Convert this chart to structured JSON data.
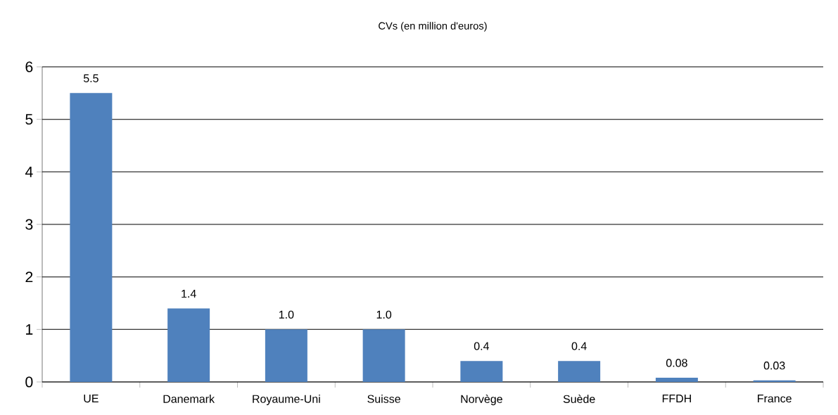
{
  "chart_data": {
    "type": "bar",
    "title": "CVs (en million d'euros)",
    "categories": [
      "UE",
      "Danemark",
      "Royaume-Uni",
      "Suisse",
      "Norvège",
      "Suède",
      "FFDH",
      "France"
    ],
    "values": [
      5.5,
      1.4,
      1.0,
      1.0,
      0.4,
      0.4,
      0.08,
      0.03
    ],
    "value_labels": [
      "5.5",
      "1.4",
      "1.0",
      "1.0",
      "0.4",
      "0.4",
      "0.08",
      "0.03"
    ],
    "color": "#4f81bd",
    "ylim": [
      0,
      6
    ],
    "yticks": [
      0,
      1,
      2,
      3,
      4,
      5,
      6
    ],
    "grid": "y"
  }
}
